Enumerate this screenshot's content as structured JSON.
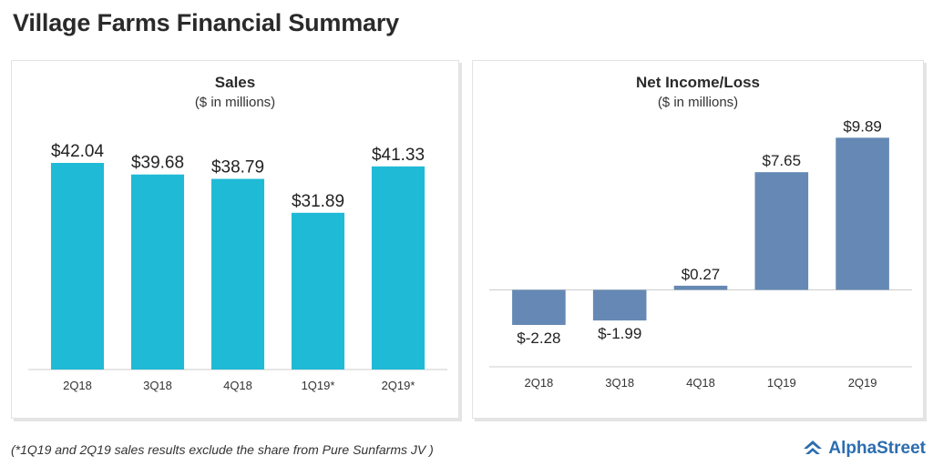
{
  "page": {
    "title": "Village Farms Financial Summary",
    "footnote": "(*1Q19 and 2Q19 sales results exclude the share from Pure Sunfarms JV )",
    "brand": "AlphaStreet"
  },
  "colors": {
    "sales_bar": "#1fbad6",
    "net_bar": "#6589b4",
    "axis": "#cccccc",
    "brand": "#2b6db0"
  },
  "chart_data": [
    {
      "type": "bar",
      "title": "Sales",
      "subtitle": "($ in millions)",
      "categories": [
        "2Q18",
        "3Q18",
        "4Q18",
        "1Q19*",
        "2Q19*"
      ],
      "values": [
        42.04,
        39.68,
        38.79,
        31.89,
        41.33
      ],
      "data_labels": [
        "$42.04",
        "$39.68",
        "$38.79",
        "$31.89",
        "$41.33"
      ],
      "ylim": [
        0,
        50
      ],
      "grid": false
    },
    {
      "type": "bar",
      "title": "Net Income/Loss",
      "subtitle": "($ in millions)",
      "categories": [
        "2Q18",
        "3Q18",
        "4Q18",
        "1Q19",
        "2Q19"
      ],
      "values": [
        -2.28,
        -1.99,
        0.27,
        7.65,
        9.89
      ],
      "data_labels": [
        "$-2.28",
        "$-1.99",
        "$0.27",
        "$7.65",
        "$9.89"
      ],
      "ylim": [
        -5,
        10.5
      ],
      "grid": false
    }
  ]
}
